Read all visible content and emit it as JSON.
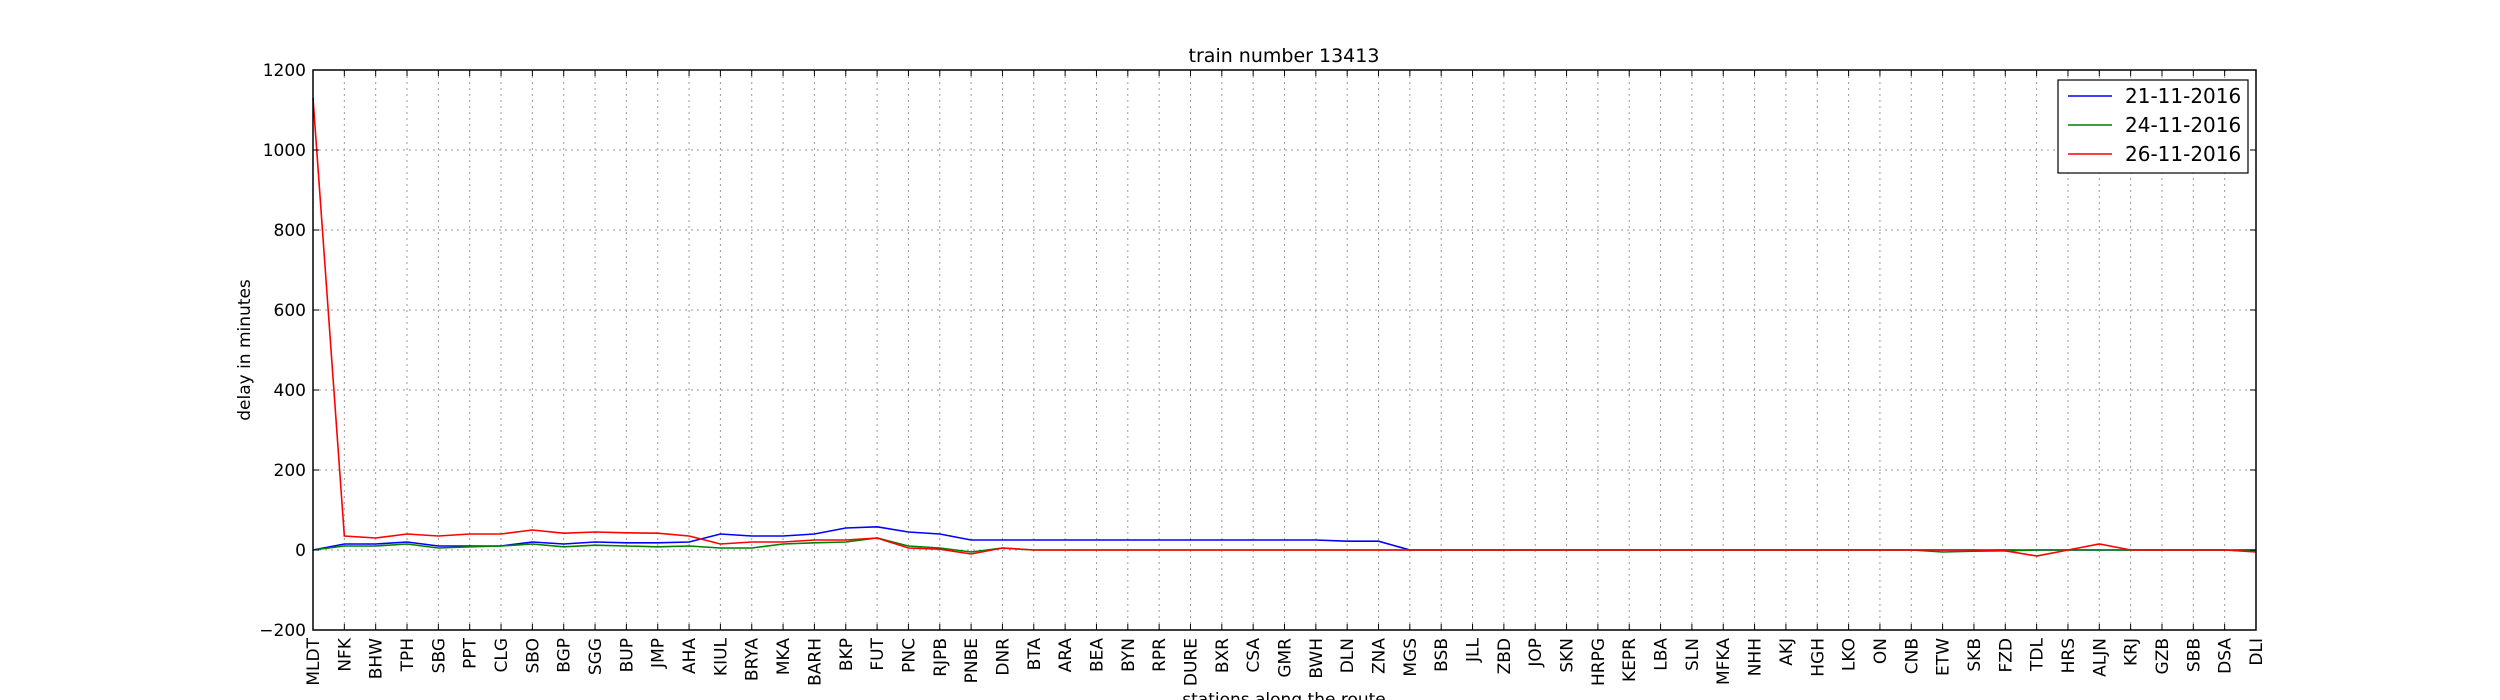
{
  "chart_data": {
    "type": "line",
    "title": "train number 13413",
    "xlabel": "stations along the route",
    "ylabel": "delay in minutes",
    "ylim": [
      -200,
      1200
    ],
    "yticks": [
      -200,
      0,
      200,
      400,
      600,
      800,
      1000,
      1200
    ],
    "ytick_labels": [
      "−200",
      "0",
      "200",
      "400",
      "600",
      "800",
      "1000",
      "1200"
    ],
    "grid": true,
    "legend_position": "top-right",
    "categories": [
      "MLDT",
      "NFK",
      "BHW",
      "TPH",
      "SBG",
      "PPT",
      "CLG",
      "SBO",
      "BGP",
      "SGG",
      "BUP",
      "JMP",
      "AHA",
      "KIUL",
      "BRYA",
      "MKA",
      "BARH",
      "BKP",
      "FUT",
      "PNC",
      "RJPB",
      "PNBE",
      "DNR",
      "BTA",
      "ARA",
      "BEA",
      "BYN",
      "RPR",
      "DURE",
      "BXR",
      "CSA",
      "GMR",
      "BWH",
      "DLN",
      "ZNA",
      "MGS",
      "BSB",
      "JLL",
      "ZBD",
      "JOP",
      "SKN",
      "HRPG",
      "KEPR",
      "LBA",
      "SLN",
      "MFKA",
      "NHH",
      "AKJ",
      "HGH",
      "LKO",
      "ON",
      "CNB",
      "ETW",
      "SKB",
      "FZD",
      "TDL",
      "HRS",
      "ALJN",
      "KRJ",
      "GZB",
      "SBB",
      "DSA",
      "DLI"
    ],
    "series": [
      {
        "name": "21-11-2016",
        "color": "#0000ff",
        "values": [
          0,
          15,
          15,
          20,
          10,
          10,
          10,
          20,
          15,
          20,
          18,
          18,
          20,
          40,
          35,
          35,
          40,
          55,
          58,
          45,
          40,
          25,
          25,
          25,
          25,
          25,
          25,
          25,
          25,
          25,
          25,
          25,
          25,
          22,
          22,
          0,
          0,
          0,
          0,
          0,
          0,
          0,
          0,
          0,
          0,
          0,
          0,
          0,
          0,
          0,
          0,
          0,
          0,
          0,
          0,
          0,
          0,
          0,
          0,
          0,
          0,
          0,
          0
        ]
      },
      {
        "name": "24-11-2016",
        "color": "#008000",
        "values": [
          0,
          10,
          10,
          15,
          5,
          8,
          10,
          15,
          8,
          12,
          10,
          8,
          10,
          5,
          5,
          15,
          18,
          20,
          30,
          10,
          5,
          -5,
          5,
          0,
          0,
          0,
          0,
          0,
          0,
          0,
          0,
          0,
          0,
          0,
          0,
          0,
          0,
          0,
          0,
          0,
          0,
          0,
          0,
          0,
          0,
          0,
          0,
          0,
          0,
          0,
          0,
          0,
          -5,
          -3,
          -2,
          0,
          0,
          0,
          0,
          0,
          0,
          0,
          -3
        ]
      },
      {
        "name": "26-11-2016",
        "color": "#ff0000",
        "values": [
          1130,
          35,
          30,
          40,
          35,
          40,
          40,
          50,
          42,
          45,
          43,
          42,
          35,
          15,
          20,
          20,
          25,
          25,
          30,
          5,
          2,
          -10,
          5,
          0,
          0,
          0,
          0,
          0,
          0,
          0,
          0,
          0,
          0,
          0,
          0,
          0,
          0,
          0,
          0,
          0,
          0,
          0,
          0,
          0,
          0,
          0,
          0,
          0,
          0,
          0,
          0,
          0,
          0,
          0,
          -2,
          -15,
          0,
          15,
          0,
          0,
          0,
          0,
          -5
        ]
      }
    ]
  }
}
